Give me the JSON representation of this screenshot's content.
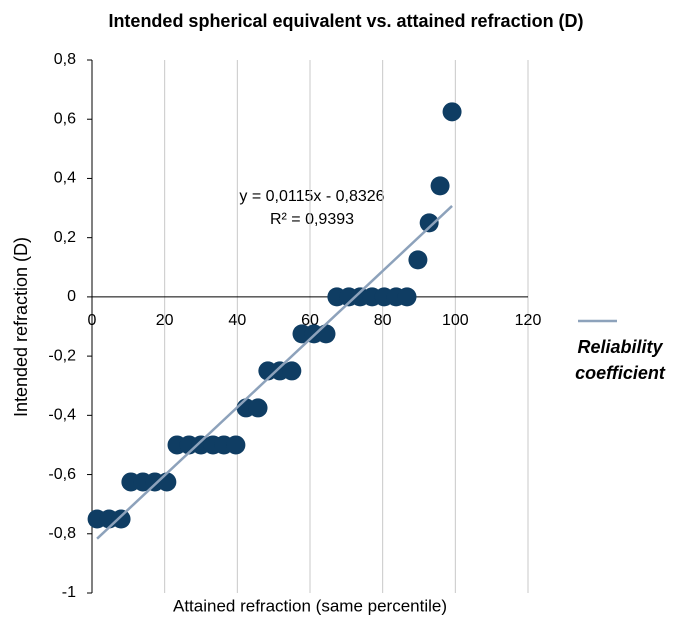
{
  "chart_data": {
    "type": "scatter",
    "title": "Intended spherical equivalent vs. attained refraction (D)",
    "x_label": "Attained refraction (same percentile)",
    "y_label": "Intended refraction (D)",
    "x": [
      1.4,
      4.7,
      8.0,
      10.7,
      14.0,
      17.3,
      20.6,
      23.4,
      26.7,
      30.0,
      33.3,
      36.3,
      39.6,
      42.4,
      45.7,
      48.4,
      51.7,
      55.0,
      57.8,
      61.1,
      64.4,
      67.4,
      70.7,
      73.8,
      77.1,
      80.4,
      83.7,
      86.7,
      89.7,
      92.8,
      95.8,
      99.1
    ],
    "values": [
      -0.75,
      -0.75,
      -0.75,
      -0.625,
      -0.625,
      -0.625,
      -0.625,
      -0.5,
      -0.5,
      -0.5,
      -0.5,
      -0.5,
      -0.5,
      -0.375,
      -0.375,
      -0.25,
      -0.25,
      -0.25,
      -0.125,
      -0.125,
      -0.125,
      0,
      0,
      0,
      0,
      0,
      0,
      0,
      0.125,
      0.25,
      0.375,
      0.625
    ],
    "color": "#0f3d63",
    "xlim": [
      0,
      120
    ],
    "xticks": [
      0,
      20,
      40,
      60,
      80,
      100,
      120
    ],
    "ylim": [
      -1,
      0.8
    ],
    "yticks": [
      {
        "value": -1,
        "label": "-1"
      },
      {
        "value": -0.8,
        "label": "-0,8"
      },
      {
        "value": -0.6,
        "label": "-0,6"
      },
      {
        "value": -0.4,
        "label": "-0,4"
      },
      {
        "value": -0.2,
        "label": "-0,2"
      },
      0,
      {
        "value": 0.2,
        "label": "0,2"
      },
      {
        "value": 0.4,
        "label": "0,4"
      },
      {
        "value": 0.6,
        "label": "0,6"
      },
      {
        "value": 0.8,
        "label": "0,8"
      }
    ],
    "grid": "x",
    "trendline": {
      "name": "Reliability coefficient",
      "color": "#8da2bb",
      "slope": 0.0115,
      "intercept": -0.8326,
      "equation": "y = 0,0115x - 0,8326",
      "r2_label": "R² = 0,9393"
    }
  }
}
